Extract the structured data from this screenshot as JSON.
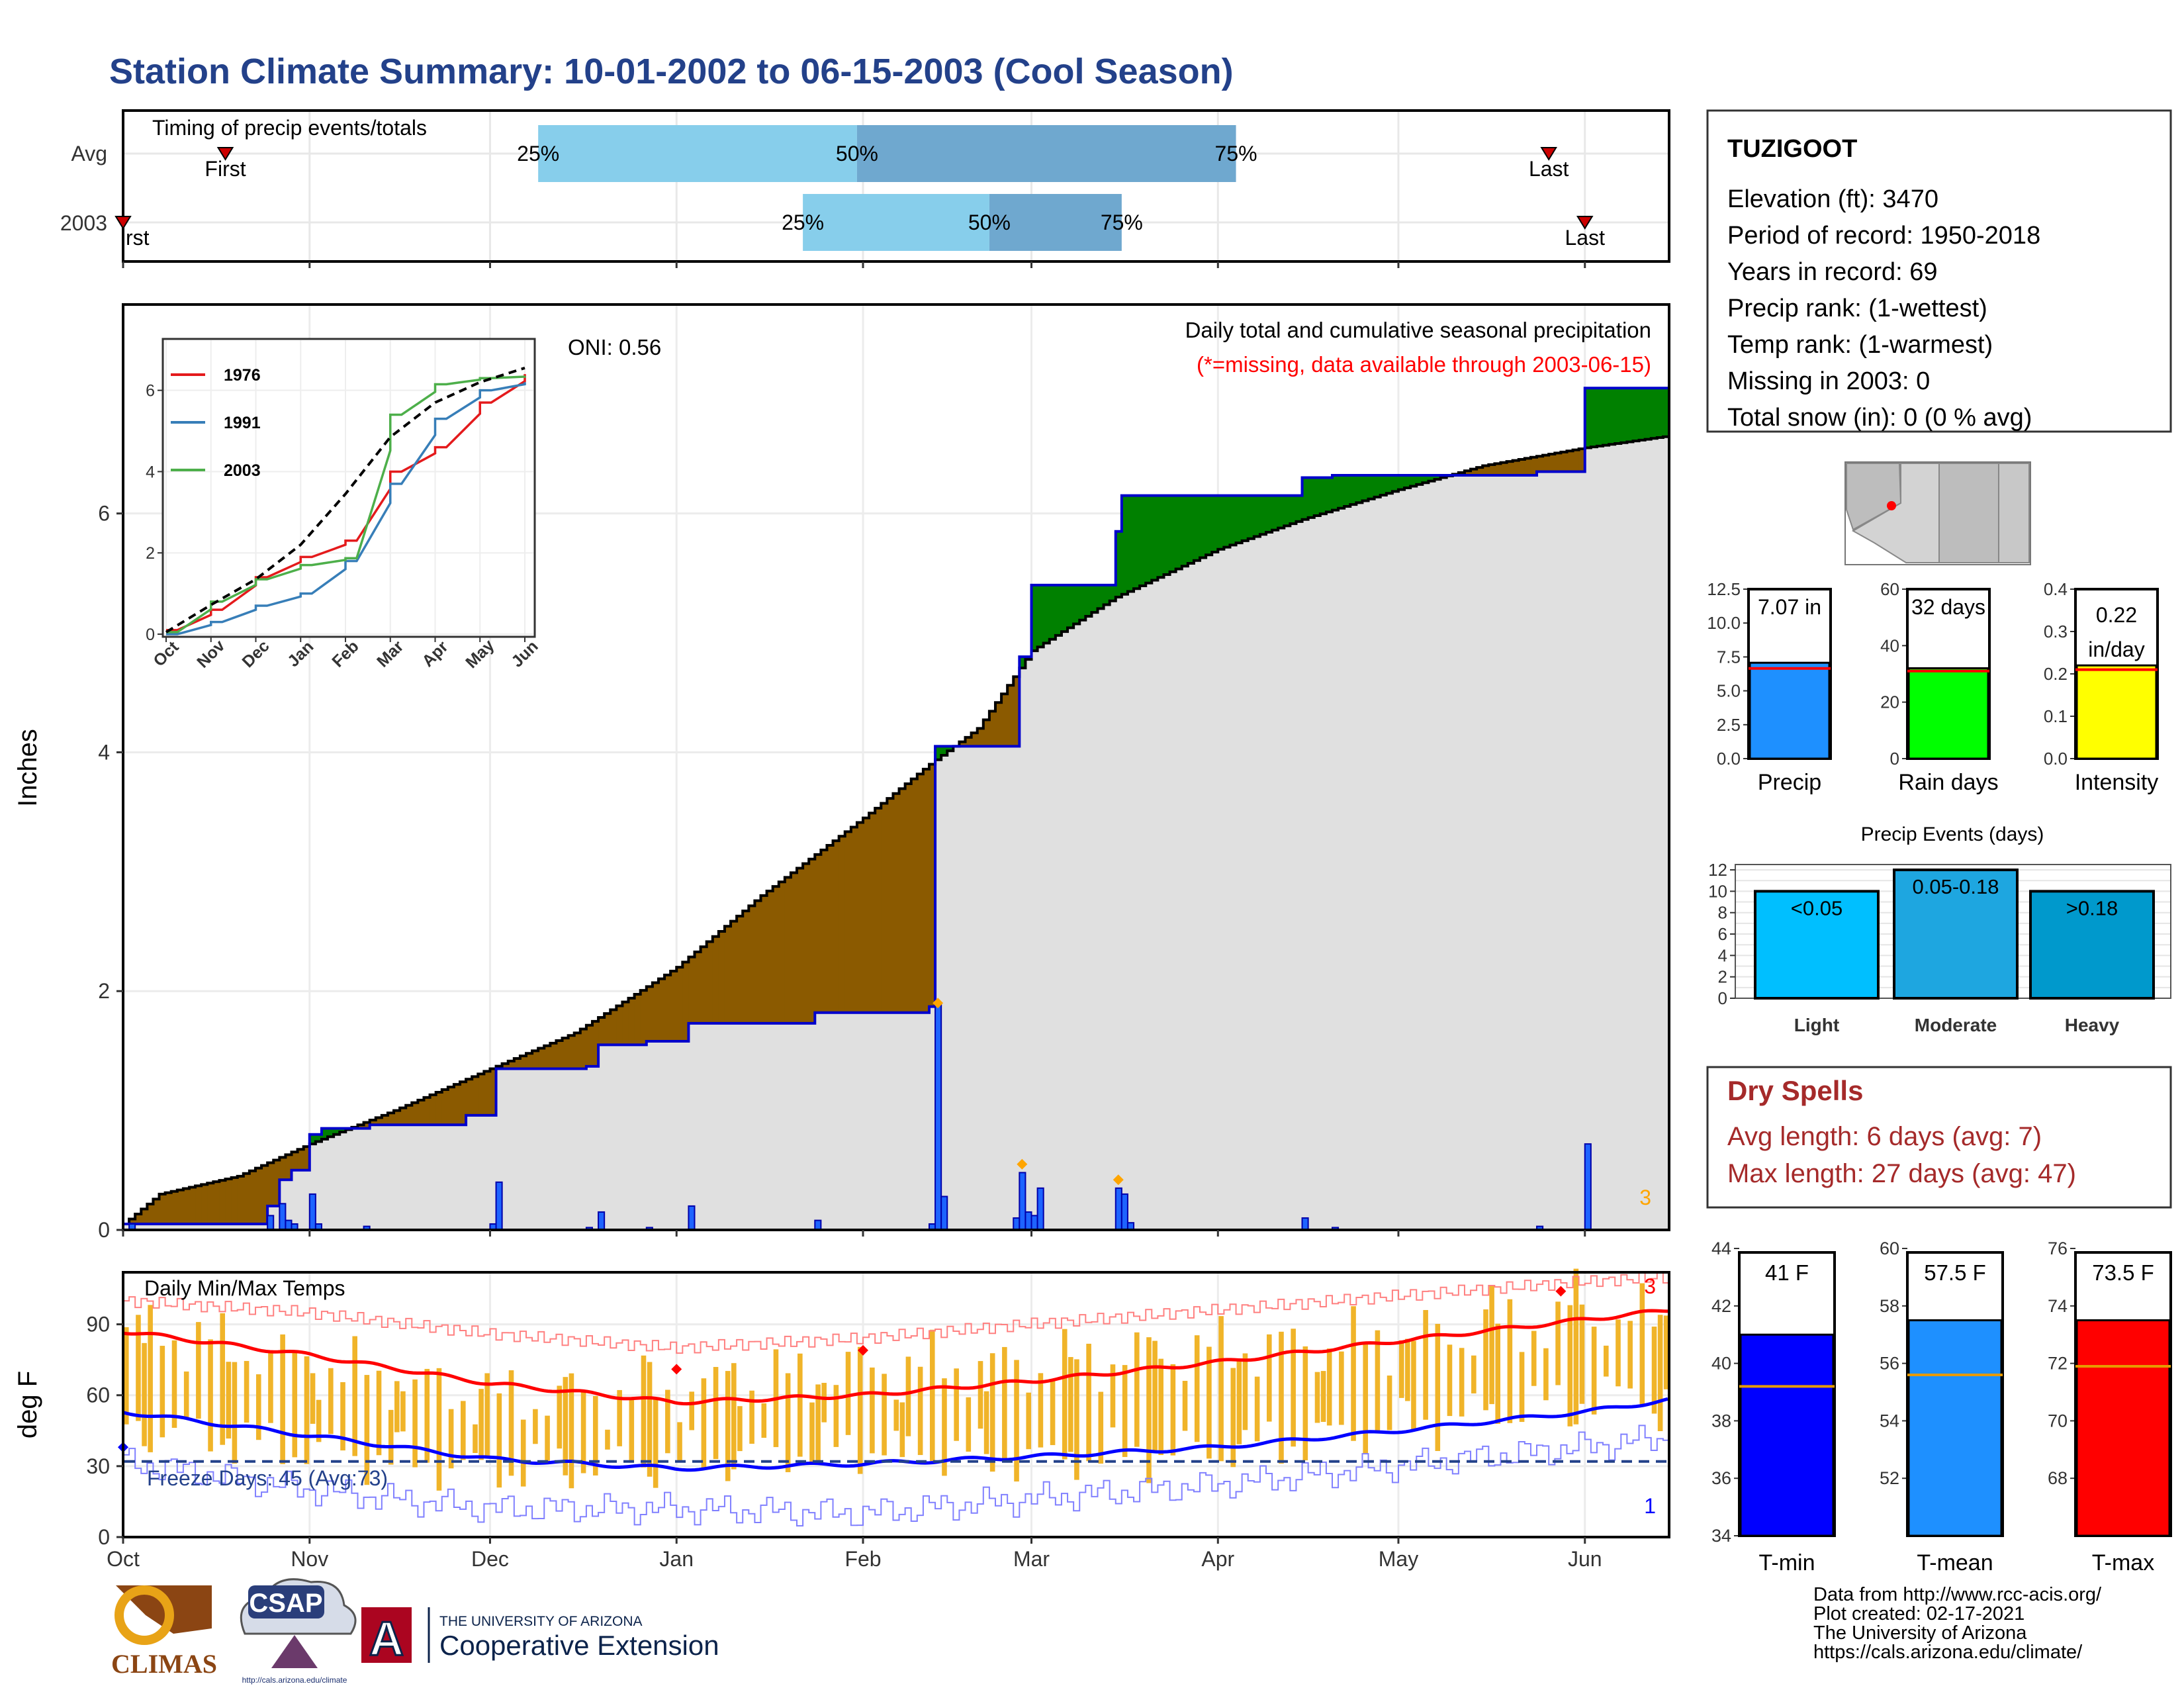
{
  "title": "Station Climate Summary: 10-01-2002 to 06-15-2003 (Cool Season)",
  "colors": {
    "title": "#23418a",
    "q_light": "#87ceeb",
    "q_dark": "#6fa8cf",
    "surplus": "#008000",
    "deficit": "#8b5a00",
    "normal_fill": "#e0e0e0",
    "cum_line": "#0000cc",
    "daily_bar": "#1e64ff",
    "temp_bar": "#f0b429",
    "tmax": "#ff0000",
    "tmin": "#0000ff",
    "dry": "#a52a2a"
  },
  "timing": {
    "heading": "Timing of precip events/totals",
    "rows": [
      {
        "label": "Avg",
        "first_date": "2002-10-18",
        "first_label": "First",
        "q25": "2002-12-09",
        "q50": "2003-01-31",
        "q75": "2003-04-04",
        "last_date": "2003-05-26",
        "last_label": "Last",
        "q25_label": "25%",
        "q50_label": "50%",
        "q75_label": "75%"
      },
      {
        "label": "2003",
        "first_date": "2002-10-01",
        "first_label": "rst",
        "q25": "2003-01-22",
        "q50": "2003-02-22",
        "q75": "2003-03-16",
        "last_date": "2003-06-01",
        "last_label": "Last",
        "q25_label": "25%",
        "q50_label": "50%",
        "q75_label": "75%"
      }
    ]
  },
  "precip_panel": {
    "header": "Daily total and cumulative seasonal precipitation",
    "note": "(*=missing, data available through 2003-06-15)",
    "oni": "ONI: 0.56",
    "ylabel": "Inches",
    "corner_count": "3"
  },
  "chart_data": [
    {
      "type": "area",
      "name": "cumulative-precip",
      "xlabel": "",
      "ylabel": "Inches",
      "x_range": [
        "2002-10-01",
        "2003-06-15"
      ],
      "ylim": [
        0,
        7.5
      ],
      "yticks": [
        0,
        2,
        4,
        6
      ],
      "series": [
        {
          "name": "2003",
          "points": [
            [
              "2002-10-01",
              0.05
            ],
            [
              "2002-10-06",
              0.05
            ],
            [
              "2002-10-25",
              0.2
            ],
            [
              "2002-10-27",
              0.42
            ],
            [
              "2002-10-29",
              0.5
            ],
            [
              "2002-11-01",
              0.8
            ],
            [
              "2002-11-03",
              0.85
            ],
            [
              "2002-11-10",
              0.85
            ],
            [
              "2002-11-11",
              0.88
            ],
            [
              "2002-11-26",
              0.88
            ],
            [
              "2002-11-27",
              0.96
            ],
            [
              "2002-12-01",
              0.96
            ],
            [
              "2002-12-02",
              1.35
            ],
            [
              "2002-12-15",
              1.35
            ],
            [
              "2002-12-17",
              1.37
            ],
            [
              "2002-12-19",
              1.55
            ],
            [
              "2002-12-27",
              1.58
            ],
            [
              "2003-01-02",
              1.58
            ],
            [
              "2003-01-03",
              1.73
            ],
            [
              "2003-01-23",
              1.73
            ],
            [
              "2003-01-24",
              1.82
            ],
            [
              "2003-02-12",
              1.87
            ],
            [
              "2003-02-13",
              4.05
            ],
            [
              "2003-02-26",
              4.05
            ],
            [
              "2003-02-27",
              4.8
            ],
            [
              "2003-03-01",
              5.4
            ],
            [
              "2003-03-14",
              5.4
            ],
            [
              "2003-03-15",
              5.85
            ],
            [
              "2003-03-16",
              6.15
            ],
            [
              "2003-03-20",
              6.15
            ],
            [
              "2003-04-14",
              6.15
            ],
            [
              "2003-04-15",
              6.3
            ],
            [
              "2003-04-20",
              6.32
            ],
            [
              "2003-05-24",
              6.35
            ],
            [
              "2003-05-31",
              6.35
            ],
            [
              "2003-06-01",
              7.05
            ],
            [
              "2003-06-15",
              7.05
            ]
          ]
        },
        {
          "name": "Avg",
          "points": [
            [
              "2002-10-01",
              0.05
            ],
            [
              "2002-10-07",
              0.3
            ],
            [
              "2002-10-20",
              0.45
            ],
            [
              "2002-11-01",
              0.72
            ],
            [
              "2002-11-15",
              1.0
            ],
            [
              "2002-12-01",
              1.35
            ],
            [
              "2002-12-15",
              1.65
            ],
            [
              "2003-01-01",
              2.2
            ],
            [
              "2003-01-15",
              2.8
            ],
            [
              "2003-02-01",
              3.45
            ],
            [
              "2003-02-12",
              3.9
            ],
            [
              "2003-02-20",
              4.2
            ],
            [
              "2003-03-01",
              4.85
            ],
            [
              "2003-03-15",
              5.3
            ],
            [
              "2003-04-01",
              5.7
            ],
            [
              "2003-04-15",
              5.95
            ],
            [
              "2003-05-01",
              6.2
            ],
            [
              "2003-05-15",
              6.4
            ],
            [
              "2003-06-01",
              6.55
            ],
            [
              "2003-06-15",
              6.65
            ]
          ]
        }
      ]
    },
    {
      "type": "bar",
      "name": "daily-precip",
      "xlabel": "",
      "ylabel": "Inches",
      "values": [
        [
          "2002-10-02",
          0.05
        ],
        [
          "2002-10-25",
          0.12
        ],
        [
          "2002-10-27",
          0.22
        ],
        [
          "2002-10-28",
          0.08
        ],
        [
          "2002-10-29",
          0.05
        ],
        [
          "2002-11-01",
          0.3
        ],
        [
          "2002-11-02",
          0.05
        ],
        [
          "2002-11-10",
          0.03
        ],
        [
          "2002-12-01",
          0.05
        ],
        [
          "2002-12-02",
          0.4
        ],
        [
          "2002-12-17",
          0.02
        ],
        [
          "2002-12-19",
          0.15
        ],
        [
          "2002-12-27",
          0.02
        ],
        [
          "2003-01-03",
          0.2
        ],
        [
          "2003-01-24",
          0.08
        ],
        [
          "2003-02-12",
          0.05
        ],
        [
          "2003-02-13",
          1.9
        ],
        [
          "2003-02-14",
          0.28
        ],
        [
          "2003-02-26",
          0.1
        ],
        [
          "2003-02-27",
          0.48
        ],
        [
          "2003-02-28",
          0.15
        ],
        [
          "2003-03-01",
          0.12
        ],
        [
          "2003-03-02",
          0.35
        ],
        [
          "2003-03-15",
          0.35
        ],
        [
          "2003-03-16",
          0.3
        ],
        [
          "2003-03-17",
          0.06
        ],
        [
          "2003-04-15",
          0.1
        ],
        [
          "2003-04-20",
          0.02
        ],
        [
          "2003-05-24",
          0.03
        ],
        [
          "2003-06-01",
          0.72
        ]
      ],
      "record_marks": [
        [
          "2003-02-13",
          1.9
        ],
        [
          "2003-02-27",
          0.55
        ],
        [
          "2003-03-15",
          0.42
        ]
      ]
    },
    {
      "type": "line",
      "name": "inset-cumulative",
      "xlabel": "",
      "ylabel": "",
      "categories": [
        "Oct",
        "Nov",
        "Dec",
        "Jan",
        "Feb",
        "Mar",
        "Apr",
        "May",
        "Jun"
      ],
      "ylim": [
        0,
        7.2
      ],
      "yticks": [
        0,
        2,
        4,
        6
      ],
      "series": [
        {
          "name": "1976",
          "color": "#e41a1c",
          "values": [
            0.1,
            0.6,
            1.4,
            1.9,
            2.3,
            4.0,
            4.6,
            5.7,
            6.4
          ]
        },
        {
          "name": "1991",
          "color": "#377eb8",
          "values": [
            0.0,
            0.3,
            0.7,
            1.0,
            1.8,
            3.7,
            5.3,
            6.0,
            6.2
          ]
        },
        {
          "name": "2003",
          "color": "#4daf4a",
          "values": [
            0.05,
            0.8,
            1.35,
            1.7,
            1.87,
            5.4,
            6.15,
            6.3,
            6.35
          ]
        },
        {
          "name": "",
          "color": "#000000",
          "dashed": true,
          "values": [
            0.05,
            0.72,
            1.35,
            2.2,
            3.45,
            4.85,
            5.7,
            6.2,
            6.55
          ]
        }
      ]
    },
    {
      "type": "bar",
      "name": "daily-temps",
      "xlabel": "",
      "ylabel": "deg F",
      "ylim": [
        0,
        112
      ],
      "yticks": [
        0,
        30,
        60,
        90
      ],
      "freeze_line": 32,
      "normal_max": [
        [
          "2002-10-01",
          87
        ],
        [
          "2002-11-01",
          77
        ],
        [
          "2002-12-01",
          65
        ],
        [
          "2003-01-01",
          57
        ],
        [
          "2003-02-01",
          60
        ],
        [
          "2003-03-01",
          66
        ],
        [
          "2003-04-01",
          74
        ],
        [
          "2003-05-01",
          83
        ],
        [
          "2003-06-01",
          92
        ],
        [
          "2003-06-15",
          96
        ]
      ],
      "normal_min": [
        [
          "2002-10-01",
          53
        ],
        [
          "2002-11-01",
          43
        ],
        [
          "2002-12-01",
          33
        ],
        [
          "2003-01-01",
          29
        ],
        [
          "2003-02-01",
          31
        ],
        [
          "2003-03-01",
          34
        ],
        [
          "2003-04-01",
          38
        ],
        [
          "2003-05-01",
          45
        ],
        [
          "2003-06-01",
          53
        ],
        [
          "2003-06-15",
          58
        ]
      ],
      "record_max": [
        [
          "2002-10-01",
          100
        ],
        [
          "2002-11-01",
          95
        ],
        [
          "2002-12-01",
          86
        ],
        [
          "2003-01-01",
          80
        ],
        [
          "2003-02-01",
          84
        ],
        [
          "2003-03-01",
          90
        ],
        [
          "2003-04-01",
          96
        ],
        [
          "2003-05-01",
          102
        ],
        [
          "2003-06-01",
          108
        ],
        [
          "2003-06-15",
          110
        ]
      ],
      "record_min": [
        [
          "2002-10-01",
          32
        ],
        [
          "2002-11-01",
          20
        ],
        [
          "2002-12-01",
          12
        ],
        [
          "2003-01-01",
          12
        ],
        [
          "2003-02-01",
          10
        ],
        [
          "2003-03-01",
          16
        ],
        [
          "2003-04-01",
          22
        ],
        [
          "2003-05-01",
          30
        ],
        [
          "2003-06-01",
          38
        ],
        [
          "2003-06-15",
          42
        ]
      ],
      "observed_max": [
        [
          "2002-10-01",
          85
        ],
        [
          "2002-11-01",
          72
        ],
        [
          "2002-12-01",
          62
        ],
        [
          "2003-01-01",
          65
        ],
        [
          "2003-02-01",
          70
        ],
        [
          "2003-03-01",
          68
        ],
        [
          "2003-04-01",
          78
        ],
        [
          "2003-05-01",
          87
        ],
        [
          "2003-06-01",
          96
        ],
        [
          "2003-06-15",
          93
        ]
      ],
      "observed_min": [
        [
          "2002-10-01",
          48
        ],
        [
          "2002-11-01",
          40
        ],
        [
          "2002-12-01",
          30
        ],
        [
          "2003-01-01",
          30
        ],
        [
          "2003-02-01",
          35
        ],
        [
          "2003-03-01",
          33
        ],
        [
          "2003-04-01",
          40
        ],
        [
          "2003-05-01",
          48
        ],
        [
          "2003-06-01",
          56
        ],
        [
          "2003-06-15",
          58
        ]
      ],
      "record_marks": [
        [
          "2003-01-01",
          71
        ],
        [
          "2003-02-01",
          79
        ],
        [
          "2003-05-28",
          104
        ],
        [
          "2002-10-01",
          38
        ]
      ]
    },
    {
      "type": "bar",
      "name": "precip-totals",
      "xlabel": "",
      "ylabel": "",
      "categories": [
        "Precip",
        "Rain days",
        "Intensity"
      ],
      "values": [
        7.07,
        32,
        0.22
      ],
      "normals": [
        6.65,
        31,
        0.21
      ],
      "ylims": [
        [
          0,
          12.5
        ],
        [
          0,
          60
        ],
        [
          0,
          0.4
        ]
      ]
    },
    {
      "type": "bar",
      "name": "precip-events",
      "xlabel": "",
      "ylabel": "",
      "title": "Precip Events (days)",
      "categories": [
        "Light",
        "Moderate",
        "Heavy"
      ],
      "values": [
        10,
        12,
        10
      ],
      "ylim": [
        0,
        12.5
      ]
    },
    {
      "type": "bar",
      "name": "temp-summary",
      "xlabel": "",
      "ylabel": "",
      "categories": [
        "T-min",
        "T-mean",
        "T-max"
      ],
      "values": [
        41,
        57.5,
        73.5
      ],
      "normals": [
        39.2,
        55.6,
        71.9
      ],
      "ylims": [
        [
          34,
          44
        ],
        [
          50,
          60
        ],
        [
          66,
          76
        ]
      ]
    }
  ],
  "axes": {
    "months": [
      "Oct",
      "Nov",
      "Dec",
      "Jan",
      "Feb",
      "Mar",
      "Apr",
      "May",
      "Jun"
    ],
    "month_starts": [
      "2002-10-01",
      "2002-11-01",
      "2002-12-01",
      "2003-01-01",
      "2003-02-01",
      "2003-03-01",
      "2003-04-01",
      "2003-05-01",
      "2003-06-01"
    ]
  },
  "temp_panel": {
    "header": "Daily Min/Max Temps",
    "freeze_text": "Freeze Days: 45 (Avg:73)",
    "ylabel": "deg F",
    "count_max": "3",
    "count_min": "1"
  },
  "station": {
    "name": "TUZIGOOT",
    "lines": [
      "Elevation (ft): 3470",
      "Period of record: 1950-2018",
      "Years in record: 69",
      "Precip rank:  (1-wettest)",
      "Temp rank:  (1-warmest)",
      "Missing in 2003: 0",
      "Total snow (in): 0 (0 % avg)"
    ]
  },
  "totals": {
    "labels": [
      "7.07 in",
      "32 days",
      "0.22",
      "in/day"
    ],
    "yticks_precip": [
      "0.0",
      "2.5",
      "5.0",
      "7.5",
      "10.0",
      "12.5"
    ],
    "yticks_days": [
      "0",
      "20",
      "40",
      "60"
    ],
    "yticks_int": [
      "0.0",
      "0.1",
      "0.2",
      "0.3",
      "0.4"
    ]
  },
  "events": {
    "labels": [
      "<0.05",
      "0.05-0.18",
      ">0.18"
    ],
    "yticks": [
      "0",
      "2",
      "4",
      "6",
      "8",
      "10",
      "12"
    ]
  },
  "dry": {
    "title": "Dry Spells",
    "avg": "Avg length: 6 days (avg: 7)",
    "max": "Max length: 27 days (avg: 47)"
  },
  "temps_summary": {
    "labels": [
      "41 F",
      "57.5 F",
      "73.5 F"
    ],
    "yticks_min": [
      "34",
      "36",
      "38",
      "40",
      "42",
      "44"
    ],
    "yticks_mean": [
      "52",
      "54",
      "56",
      "58",
      "60"
    ],
    "yticks_max": [
      "68",
      "70",
      "72",
      "74",
      "76"
    ]
  },
  "footer": {
    "lines": [
      "Data from http://www.rcc-acis.org/",
      "Plot created: 02-17-2021",
      "The University of Arizona",
      "https://cals.arizona.edu/climate/"
    ],
    "climas": "CLIMAS",
    "csap": "CSAP",
    "csap_url": "http://cals.arizona.edu/climate",
    "ua_small": "THE UNIVERSITY OF ARIZONA",
    "ua_big": "Cooperative Extension",
    "ua_letter": "A"
  }
}
